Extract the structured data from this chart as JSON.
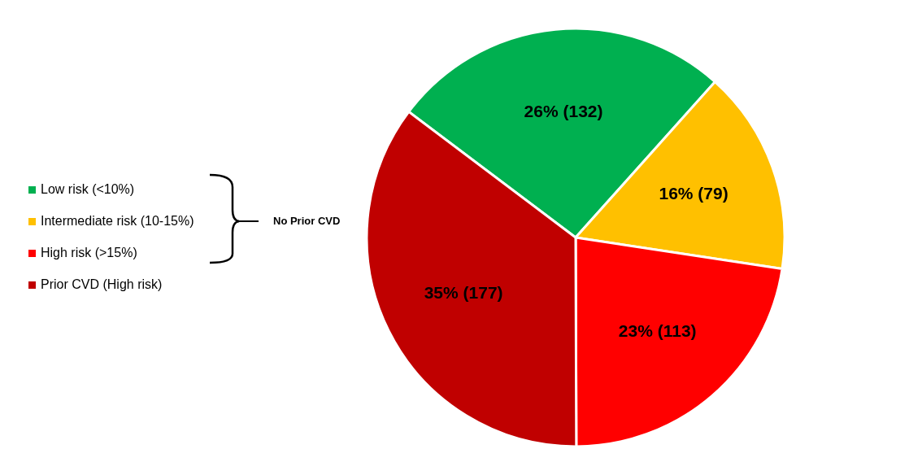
{
  "chart_data": {
    "type": "pie",
    "categories": [
      "Low risk (<10%)",
      "Intermediate risk (10-15%)",
      "High risk (>15%)",
      "Prior CVD (High risk)"
    ],
    "values": [
      132,
      79,
      113,
      177
    ],
    "colors": [
      "#00b050",
      "#ffc000",
      "#ff0000",
      "#c00000"
    ],
    "value_labels": [
      "26% (132)",
      "16% (79)",
      "23% (113)",
      "35% (177)"
    ],
    "legend": "left",
    "annotations": [
      "No Prior CVD"
    ]
  }
}
